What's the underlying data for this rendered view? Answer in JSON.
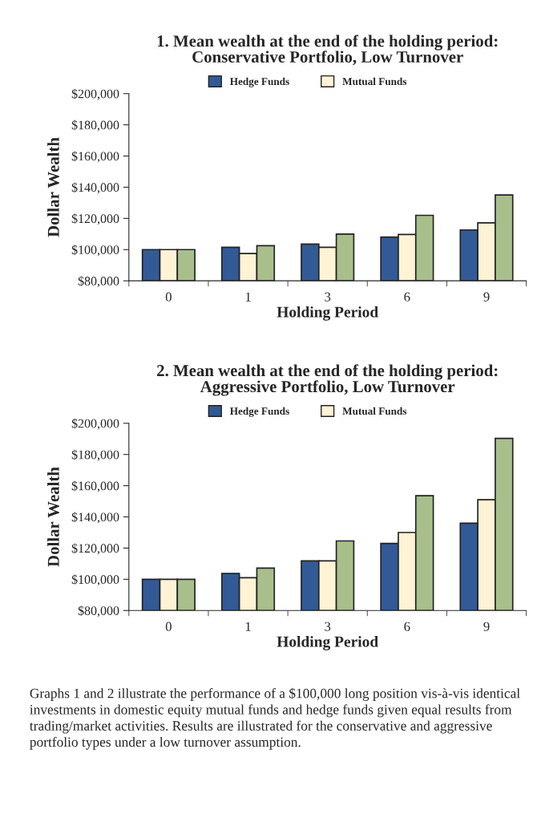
{
  "chart_data": [
    {
      "type": "bar",
      "title": "1. Mean wealth at the end of the holding period:\nConservative Portfolio, Low Turnover",
      "xlabel": "Holding Period",
      "ylabel": "Dollar Wealth",
      "categories": [
        "0",
        "1",
        "3",
        "6",
        "9"
      ],
      "series": [
        {
          "name": "Hedge Funds",
          "color": "#325a96",
          "values": [
            100000,
            101500,
            103500,
            108000,
            112600
          ]
        },
        {
          "name": "Mutual Funds",
          "color": "#fff3d6",
          "values": [
            100000,
            97500,
            101500,
            109700,
            117200
          ]
        },
        {
          "color": "#a8bf8c",
          "values": [
            100000,
            102500,
            110000,
            122000,
            135000
          ]
        }
      ],
      "ylim": [
        80000,
        200000
      ],
      "yticks": [
        {
          "value": 80000,
          "label": "$80,000"
        },
        {
          "value": 100000,
          "label": "$100,000"
        },
        {
          "value": 120000,
          "label": "$120,000"
        },
        {
          "value": 140000,
          "label": "$140,000"
        },
        {
          "value": 160000,
          "label": "$160,000"
        },
        {
          "value": 180000,
          "label": "$180,000"
        },
        {
          "value": 200000,
          "label": "$200,000"
        }
      ],
      "legend": "top",
      "grid": false
    },
    {
      "type": "bar",
      "title": "2. Mean wealth at the end of the holding period:\nAggressive Portfolio, Low Turnover",
      "xlabel": "Holding Period",
      "ylabel": "Dollar Wealth",
      "categories": [
        "0",
        "1",
        "3",
        "6",
        "9"
      ],
      "series": [
        {
          "name": "Hedge Funds",
          "color": "#325a96",
          "values": [
            100000,
            103700,
            111800,
            123000,
            136000
          ]
        },
        {
          "name": "Mutual Funds",
          "color": "#fff3d6",
          "values": [
            100000,
            101000,
            111800,
            130000,
            151000
          ]
        },
        {
          "color": "#a8bf8c",
          "values": [
            100000,
            107200,
            124600,
            153600,
            190300
          ]
        }
      ],
      "ylim": [
        80000,
        200000
      ],
      "yticks": [
        {
          "value": 80000,
          "label": "$80,000"
        },
        {
          "value": 100000,
          "label": "$100,000"
        },
        {
          "value": 120000,
          "label": "$120,000"
        },
        {
          "value": 140000,
          "label": "$140,000"
        },
        {
          "value": 160000,
          "label": "$160,000"
        },
        {
          "value": 180000,
          "label": "$180,000"
        },
        {
          "value": 200000,
          "label": "$200,000"
        }
      ],
      "legend": "top",
      "grid": false,
      "annotations": [
        "Graphs 1 and 2 illustrate the performance of a $100,000 long position vis-à-vis identical investments in domestic equity mutual funds and hedge funds given equal results from trading/market activities. Results are illustrated for the conservative and aggressive portfolio types under a low turnover assumption."
      ]
    }
  ]
}
